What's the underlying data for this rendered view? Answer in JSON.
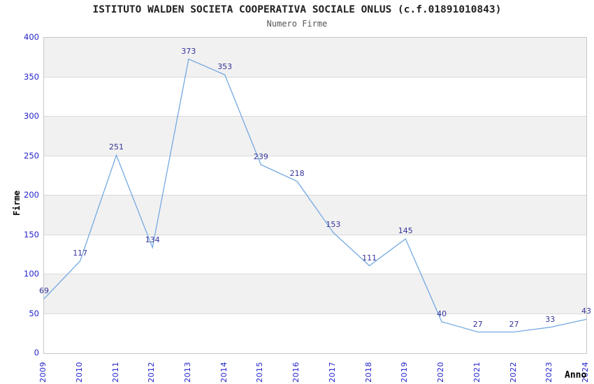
{
  "header": {
    "title": "ISTITUTO WALDEN SOCIETA COOPERATIVA SOCIALE ONLUS (c.f.01891010843)",
    "subtitle": "Numero Firme"
  },
  "chart_data": {
    "type": "line",
    "title": "ISTITUTO WALDEN SOCIETA COOPERATIVA SOCIALE ONLUS (c.f.01891010843)",
    "subtitle": "Numero Firme",
    "x": [
      "2009",
      "2010",
      "2011",
      "2012",
      "2013",
      "2014",
      "2015",
      "2016",
      "2017",
      "2018",
      "2019",
      "2020",
      "2021",
      "2022",
      "2023",
      "2024"
    ],
    "values": [
      69,
      117,
      251,
      134,
      373,
      353,
      239,
      218,
      153,
      111,
      145,
      40,
      27,
      27,
      33,
      43
    ],
    "xlabel": "Anno",
    "ylabel": "Firme",
    "ylim": [
      0,
      400
    ],
    "ytick_step": 50,
    "yticks": [
      0,
      50,
      100,
      150,
      200,
      250,
      300,
      350,
      400
    ],
    "grid": "horizontal-gridlines-with-alternating-bands",
    "legend": "none",
    "point_labels_visible": true,
    "x_tick_rotation_degrees": 90,
    "colors": {
      "line": "#74a9e2",
      "point_label": "#333399",
      "tick_label": "#2323cc",
      "band": "#f1f1f1",
      "gridline": "#dadada",
      "plot_border": "#c8c8c8",
      "title": "#222222",
      "subtitle": "#555555",
      "axis_title": "#000000",
      "background": "#ffffff"
    }
  }
}
